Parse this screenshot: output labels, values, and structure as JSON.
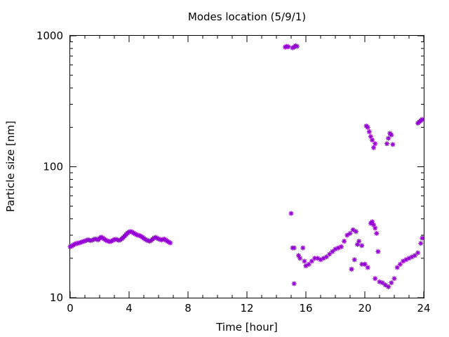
{
  "chart_data": {
    "type": "scatter",
    "title": "Modes location (5/9/1)",
    "xlabel": "Time [hour]",
    "ylabel": "Particle size [nm]",
    "xlim": [
      0,
      24
    ],
    "ylim": [
      10,
      1000
    ],
    "yscale": "log",
    "grid": false,
    "legend": "none",
    "x_ticks": [
      0,
      4,
      8,
      12,
      16,
      20,
      24
    ],
    "x_tick_labels": [
      "0",
      "4",
      "8",
      "12",
      "16",
      "20",
      "24"
    ],
    "y_ticks": [
      10,
      100,
      1000
    ],
    "y_tick_labels": [
      "10",
      "100",
      "1000"
    ],
    "marker_color": "#9400d3",
    "series": [
      {
        "x": [
          0.0,
          0.1,
          0.2,
          0.3,
          0.4,
          0.5,
          0.6,
          0.7,
          0.8,
          0.9,
          1.0,
          1.1,
          1.2,
          1.3,
          1.4,
          1.5,
          1.6,
          1.7,
          1.8,
          1.9,
          2.0,
          2.1,
          2.2,
          2.3,
          2.4,
          2.5,
          2.6,
          2.7,
          2.8,
          2.9,
          3.0,
          3.1,
          3.2,
          3.3,
          3.4,
          3.5,
          3.6,
          3.7,
          3.8,
          3.9,
          4.0,
          4.1,
          4.2,
          4.3,
          4.4,
          4.5,
          4.6,
          4.7,
          4.8,
          4.9,
          5.0,
          5.1,
          5.2,
          5.3,
          5.4,
          5.5,
          5.6,
          5.7,
          5.8,
          5.9,
          6.0,
          6.1,
          6.2,
          6.3,
          6.4,
          6.5,
          6.6,
          6.7,
          6.8,
          14.6,
          14.7,
          14.8,
          15.1,
          15.2,
          15.3,
          15.4,
          15.0,
          15.1,
          15.2,
          15.5,
          15.6,
          15.8,
          15.9,
          16.0,
          16.2,
          16.4,
          16.6,
          16.8,
          17.0,
          17.2,
          17.4,
          17.6,
          17.8,
          18.0,
          18.2,
          18.4,
          18.6,
          18.8,
          19.0,
          19.2,
          19.4,
          19.6,
          19.8,
          20.0,
          20.2,
          20.4,
          20.5,
          20.6,
          20.7,
          20.8,
          20.9,
          21.0,
          21.2,
          21.4,
          21.6,
          21.8,
          22.0,
          22.2,
          22.4,
          22.6,
          22.8,
          23.0,
          23.2,
          23.4,
          23.6,
          23.8,
          23.9,
          20.1,
          20.2,
          20.3,
          20.4,
          20.5,
          20.6,
          20.7,
          21.5,
          21.6,
          21.7,
          21.8,
          21.9,
          23.6,
          23.7,
          23.8,
          23.9,
          15.2,
          19.1,
          19.3,
          19.5,
          19.8,
          20.0,
          20.7
        ],
        "y": [
          24.5,
          24.8,
          25.2,
          25.6,
          25.9,
          26.0,
          26.2,
          26.4,
          26.6,
          26.9,
          27.1,
          27.4,
          27.7,
          27.5,
          27.3,
          27.5,
          27.8,
          28.1,
          27.9,
          27.6,
          28.4,
          29.0,
          28.6,
          28.1,
          27.6,
          27.2,
          27.0,
          26.8,
          27.0,
          27.4,
          27.8,
          27.9,
          27.7,
          27.4,
          27.6,
          28.1,
          28.8,
          29.6,
          30.4,
          31.2,
          31.8,
          32.0,
          31.7,
          31.2,
          30.7,
          30.3,
          30.0,
          29.8,
          29.5,
          29.0,
          28.4,
          27.9,
          27.5,
          27.2,
          27.0,
          27.4,
          28.0,
          28.6,
          28.9,
          28.5,
          28.1,
          27.8,
          27.6,
          27.9,
          28.0,
          27.5,
          27.0,
          26.6,
          26.2,
          820,
          830,
          825,
          810,
          820,
          840,
          830,
          44,
          24.0,
          12.8,
          21.0,
          20.0,
          24.0,
          19.0,
          17.5,
          18.0,
          19.0,
          20.0,
          20.0,
          19.5,
          20.0,
          20.5,
          21.5,
          22.5,
          23.5,
          24.0,
          24.5,
          27.0,
          30.0,
          31.0,
          33.0,
          32.0,
          27.0,
          25.0,
          18.0,
          17.0,
          37.0,
          38.0,
          36.0,
          34.0,
          31.0,
          22.5,
          13.2,
          13.0,
          12.5,
          12.1,
          13.0,
          14.0,
          17.0,
          18.0,
          19.0,
          19.5,
          20.0,
          20.5,
          21.0,
          22.0,
          26.0,
          28.5,
          205,
          200,
          185,
          170,
          160,
          140,
          150,
          150,
          165,
          180,
          175,
          148,
          215,
          220,
          225,
          230,
          24.0,
          16.5,
          19.5,
          25.5,
          18.0,
          18.0,
          14.0
        ]
      }
    ]
  }
}
